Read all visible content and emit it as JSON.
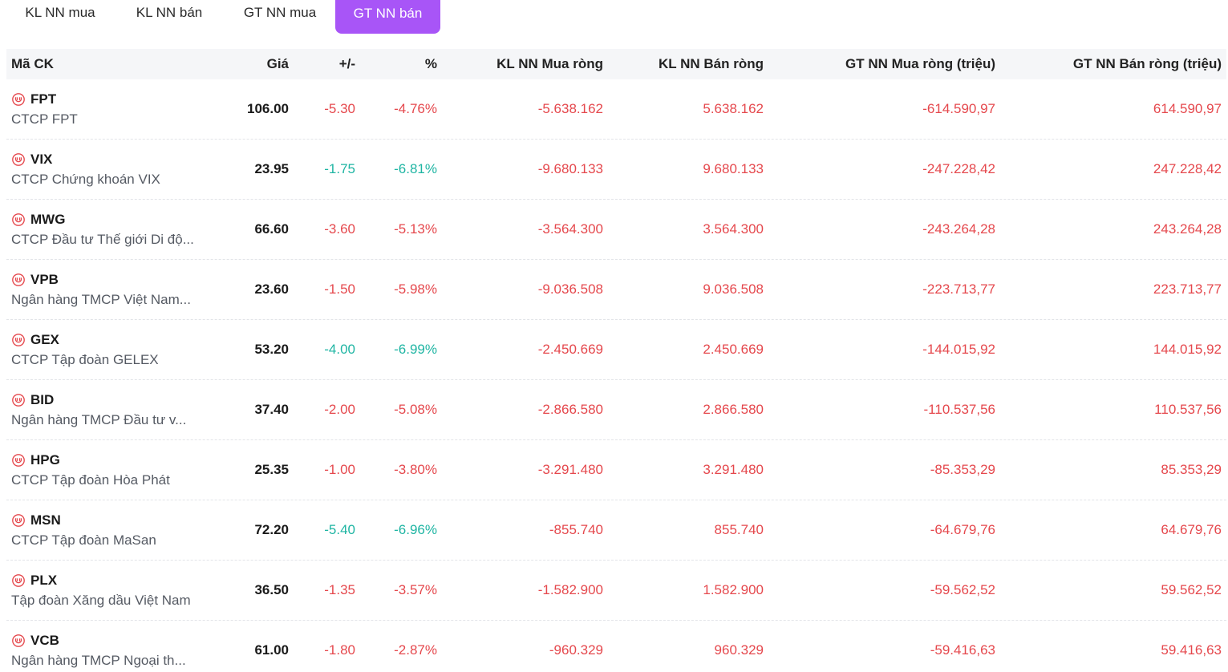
{
  "tabs": [
    {
      "label": "KL NN mua"
    },
    {
      "label": "KL NN bán"
    },
    {
      "label": "GT NN mua"
    },
    {
      "label": "GT NN bán"
    }
  ],
  "active_tab": "GT NN bán",
  "colors": {
    "accent": "#a855f7",
    "down": "#e5484d",
    "teal": "#1fb5a3"
  },
  "icons": {
    "ticker_icon": "hourglass-circle-icon"
  },
  "table": {
    "headers": {
      "code": "Mã CK",
      "price": "Giá",
      "change": "+/-",
      "pct": "%",
      "kl_mua": "KL NN Mua ròng",
      "kl_ban": "KL NN Bán ròng",
      "gt_mua": "GT NN Mua ròng (triệu)",
      "gt_ban": "GT NN Bán ròng (triệu)"
    },
    "rows": [
      {
        "ticker": "FPT",
        "name": "CTCP FPT",
        "price": "106.00",
        "change": "-5.30",
        "pct": "-4.76%",
        "kl_mua": "-5.638.162",
        "kl_ban": "5.638.162",
        "gt_mua": "-614.590,97",
        "gt_ban": "614.590,97"
      },
      {
        "ticker": "VIX",
        "name": "CTCP Chứng khoán VIX",
        "price": "23.95",
        "change": "-1.75",
        "pct": "-6.81%",
        "kl_mua": "-9.680.133",
        "kl_ban": "9.680.133",
        "gt_mua": "-247.228,42",
        "gt_ban": "247.228,42"
      },
      {
        "ticker": "MWG",
        "name": "CTCP Đầu tư Thế giới Di độ...",
        "price": "66.60",
        "change": "-3.60",
        "pct": "-5.13%",
        "kl_mua": "-3.564.300",
        "kl_ban": "3.564.300",
        "gt_mua": "-243.264,28",
        "gt_ban": "243.264,28"
      },
      {
        "ticker": "VPB",
        "name": "Ngân hàng TMCP Việt Nam...",
        "price": "23.60",
        "change": "-1.50",
        "pct": "-5.98%",
        "kl_mua": "-9.036.508",
        "kl_ban": "9.036.508",
        "gt_mua": "-223.713,77",
        "gt_ban": "223.713,77"
      },
      {
        "ticker": "GEX",
        "name": "CTCP Tập đoàn GELEX",
        "price": "53.20",
        "change": "-4.00",
        "pct": "-6.99%",
        "kl_mua": "-2.450.669",
        "kl_ban": "2.450.669",
        "gt_mua": "-144.015,92",
        "gt_ban": "144.015,92"
      },
      {
        "ticker": "BID",
        "name": "Ngân hàng TMCP Đầu tư v...",
        "price": "37.40",
        "change": "-2.00",
        "pct": "-5.08%",
        "kl_mua": "-2.866.580",
        "kl_ban": "2.866.580",
        "gt_mua": "-110.537,56",
        "gt_ban": "110.537,56"
      },
      {
        "ticker": "HPG",
        "name": "CTCP Tập đoàn Hòa Phát",
        "price": "25.35",
        "change": "-1.00",
        "pct": "-3.80%",
        "kl_mua": "-3.291.480",
        "kl_ban": "3.291.480",
        "gt_mua": "-85.353,29",
        "gt_ban": "85.353,29"
      },
      {
        "ticker": "MSN",
        "name": "CTCP Tập đoàn MaSan",
        "price": "72.20",
        "change": "-5.40",
        "pct": "-6.96%",
        "kl_mua": "-855.740",
        "kl_ban": "855.740",
        "gt_mua": "-64.679,76",
        "gt_ban": "64.679,76"
      },
      {
        "ticker": "PLX",
        "name": "Tập đoàn Xăng dầu Việt Nam",
        "price": "36.50",
        "change": "-1.35",
        "pct": "-3.57%",
        "kl_mua": "-1.582.900",
        "kl_ban": "1.582.900",
        "gt_mua": "-59.562,52",
        "gt_ban": "59.562,52"
      },
      {
        "ticker": "VCB",
        "name": "Ngân hàng TMCP Ngoại th...",
        "price": "61.00",
        "change": "-1.80",
        "pct": "-2.87%",
        "kl_mua": "-960.329",
        "kl_ban": "960.329",
        "gt_mua": "-59.416,63",
        "gt_ban": "59.416,63"
      }
    ],
    "change_color": [
      "down",
      "up",
      "down",
      "down",
      "up",
      "down",
      "down",
      "up",
      "down",
      "down"
    ]
  }
}
